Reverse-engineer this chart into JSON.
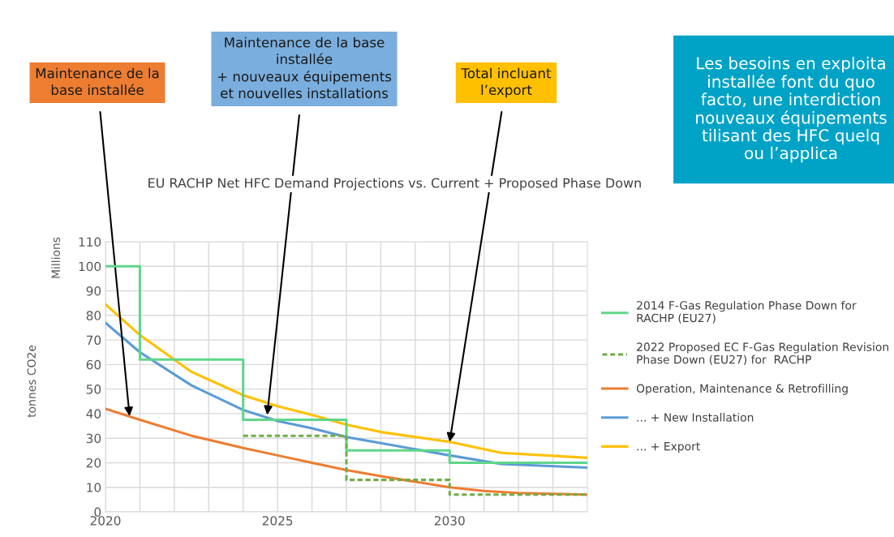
{
  "chart_data": {
    "type": "line",
    "title": "EU RACHP Net HFC Demand Projections vs. Current + Proposed Phase Down",
    "ylabel": "tonnes CO2e",
    "xlim": [
      2020,
      2034
    ],
    "ylim": [
      0,
      110
    ],
    "xticks": [
      2020,
      {
        "value": 2021,
        "label": null
      },
      {
        "value": 2022,
        "label": null
      },
      {
        "value": 2023,
        "label": null
      },
      {
        "value": 2024,
        "label": null
      },
      2025,
      {
        "value": 2026,
        "label": null
      },
      {
        "value": 2027,
        "label": null
      },
      {
        "value": 2028,
        "label": null
      },
      {
        "value": 2029,
        "label": null
      },
      2030,
      {
        "value": 2031,
        "label": null
      },
      {
        "value": 2032,
        "label": null
      },
      {
        "value": 2033,
        "label": null
      }
    ],
    "yticks": [
      0,
      10,
      20,
      30,
      40,
      50,
      60,
      70,
      80,
      90,
      100,
      110
    ],
    "grid": true,
    "legend": "right",
    "series": [
      {
        "name": "2014 F-Gas Regulation Phase Down for\nRACHP (EU27)",
        "type": "step",
        "color": "#5fd68a",
        "x": [
          2020,
          2021,
          2024,
          2027,
          2030,
          2034
        ],
        "values": [
          100,
          62,
          37.5,
          25,
          20,
          20
        ]
      },
      {
        "name": "2022 Proposed EC F-Gas Regulation Revision\nPhase Down (EU27) for  RACHP",
        "type": "step",
        "color": "#70ad47",
        "line_style": "dashed",
        "x": [
          2024,
          2027,
          2030,
          2034
        ],
        "values": [
          31,
          13,
          7,
          7
        ]
      },
      {
        "name": "Operation, Maintenance & Retrofilling",
        "color": "#ed7d31",
        "x": [
          2020,
          2021,
          2022.5,
          2024,
          2025,
          2026,
          2027,
          2028,
          2030,
          2031,
          2032,
          2034
        ],
        "values": [
          42,
          37.5,
          31,
          26,
          23,
          20,
          17,
          14.5,
          10,
          8.5,
          7.7,
          7
        ]
      },
      {
        "name": "... + New Installation",
        "color": "#5b9bd5",
        "x": [
          2020,
          2021,
          2022.5,
          2024,
          2025,
          2026,
          2027,
          2028,
          2030,
          2031.5,
          2034
        ],
        "values": [
          77,
          65,
          51.5,
          41.5,
          37,
          34,
          30.5,
          28,
          23,
          19.5,
          18
        ]
      },
      {
        "name": "... + Export",
        "color": "#ffc000",
        "x": [
          2020,
          2021,
          2022.5,
          2024,
          2025,
          2026,
          2027,
          2028,
          2030,
          2031.5,
          2034
        ],
        "values": [
          84.5,
          72,
          57,
          47.5,
          43,
          39.5,
          35.5,
          32.5,
          28.5,
          24,
          22
        ]
      }
    ],
    "annotations": [
      "Millions",
      {
        "text": "Maintenance de la\nbase installée",
        "x": 2020.7,
        "y": 39
      },
      {
        "text": "Maintenance de la base\ninstallée\n+ nouveaux équipements\net nouvelles installations",
        "x": 2024.7,
        "y": 39.5
      },
      {
        "text": "Total incluant\nl’export",
        "x": 2030,
        "y": 28.5
      },
      "Les besoins en exploita\ninstallée font du quo\nfacto, une interdiction\nnouveaux équipements\ntilisant des HFC quelq\nou l’applica"
    ]
  }
}
